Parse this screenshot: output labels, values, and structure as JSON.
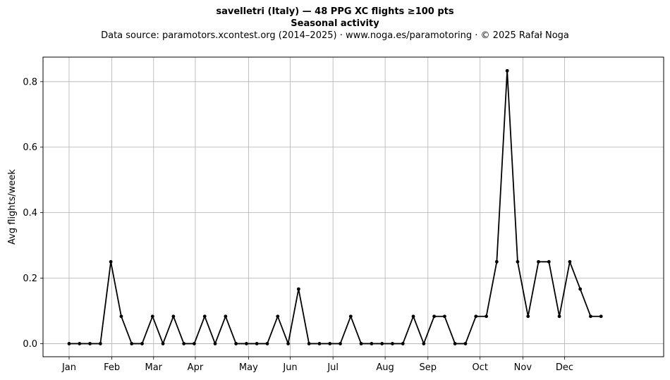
{
  "chart_data": {
    "type": "line",
    "title": "savelletri (Italy)  —  48 PPG XC flights ≥100 pts",
    "subtitle": "Seasonal activity",
    "source_line": "Data source: paramotors.xcontest.org (2014–2025)  ·  www.noga.es/paramotoring  ·  © 2025 Rafał Noga",
    "xlabel": "",
    "ylabel": "Avg flights/week",
    "ylim": [
      -0.04,
      0.875
    ],
    "xlim": [
      -2.5,
      57
    ],
    "grid": true,
    "x_ticks": [
      {
        "pos": 0,
        "label": "Jan"
      },
      {
        "pos": 4.1,
        "label": "Feb"
      },
      {
        "pos": 8.1,
        "label": "Mar"
      },
      {
        "pos": 12.1,
        "label": "Apr"
      },
      {
        "pos": 17.2,
        "label": "May"
      },
      {
        "pos": 21.2,
        "label": "Jun"
      },
      {
        "pos": 25.3,
        "label": "Jul"
      },
      {
        "pos": 30.3,
        "label": "Aug"
      },
      {
        "pos": 34.4,
        "label": "Sep"
      },
      {
        "pos": 39.4,
        "label": "Oct"
      },
      {
        "pos": 43.5,
        "label": "Nov"
      },
      {
        "pos": 47.5,
        "label": "Dec"
      }
    ],
    "y_ticks": [
      {
        "value": 0.0,
        "label": "0.0"
      },
      {
        "value": 0.2,
        "label": "0.2"
      },
      {
        "value": 0.4,
        "label": "0.4"
      },
      {
        "value": 0.6,
        "label": "0.6"
      },
      {
        "value": 0.8,
        "label": "0.8"
      }
    ],
    "series": [
      {
        "color": "#000000",
        "x": [
          0,
          1,
          2,
          3,
          4,
          5,
          6,
          7,
          8,
          9,
          10,
          11,
          12,
          13,
          14,
          15,
          16,
          17,
          18,
          19,
          20,
          21,
          22,
          23,
          24,
          25,
          26,
          27,
          28,
          29,
          30,
          31,
          32,
          33,
          34,
          35,
          36,
          37,
          38,
          39,
          40,
          41,
          42,
          43,
          44,
          45,
          46,
          47,
          48,
          49,
          50,
          51
        ],
        "values": [
          0,
          0,
          0,
          0,
          0.25,
          0.0833,
          0,
          0,
          0.0833,
          0,
          0.0833,
          0,
          0,
          0.0833,
          0,
          0.0833,
          0,
          0,
          0,
          0,
          0.0833,
          0,
          0.1667,
          0,
          0,
          0,
          0,
          0.0833,
          0,
          0,
          0,
          0,
          0,
          0.0833,
          0,
          0.0833,
          0.0833,
          0,
          0,
          0.0833,
          0.0833,
          0.25,
          0.8333,
          0.25,
          0.0833,
          0.25,
          0.25,
          0.0833,
          0.25,
          0.1667,
          0.0833,
          0.0833
        ]
      }
    ]
  }
}
